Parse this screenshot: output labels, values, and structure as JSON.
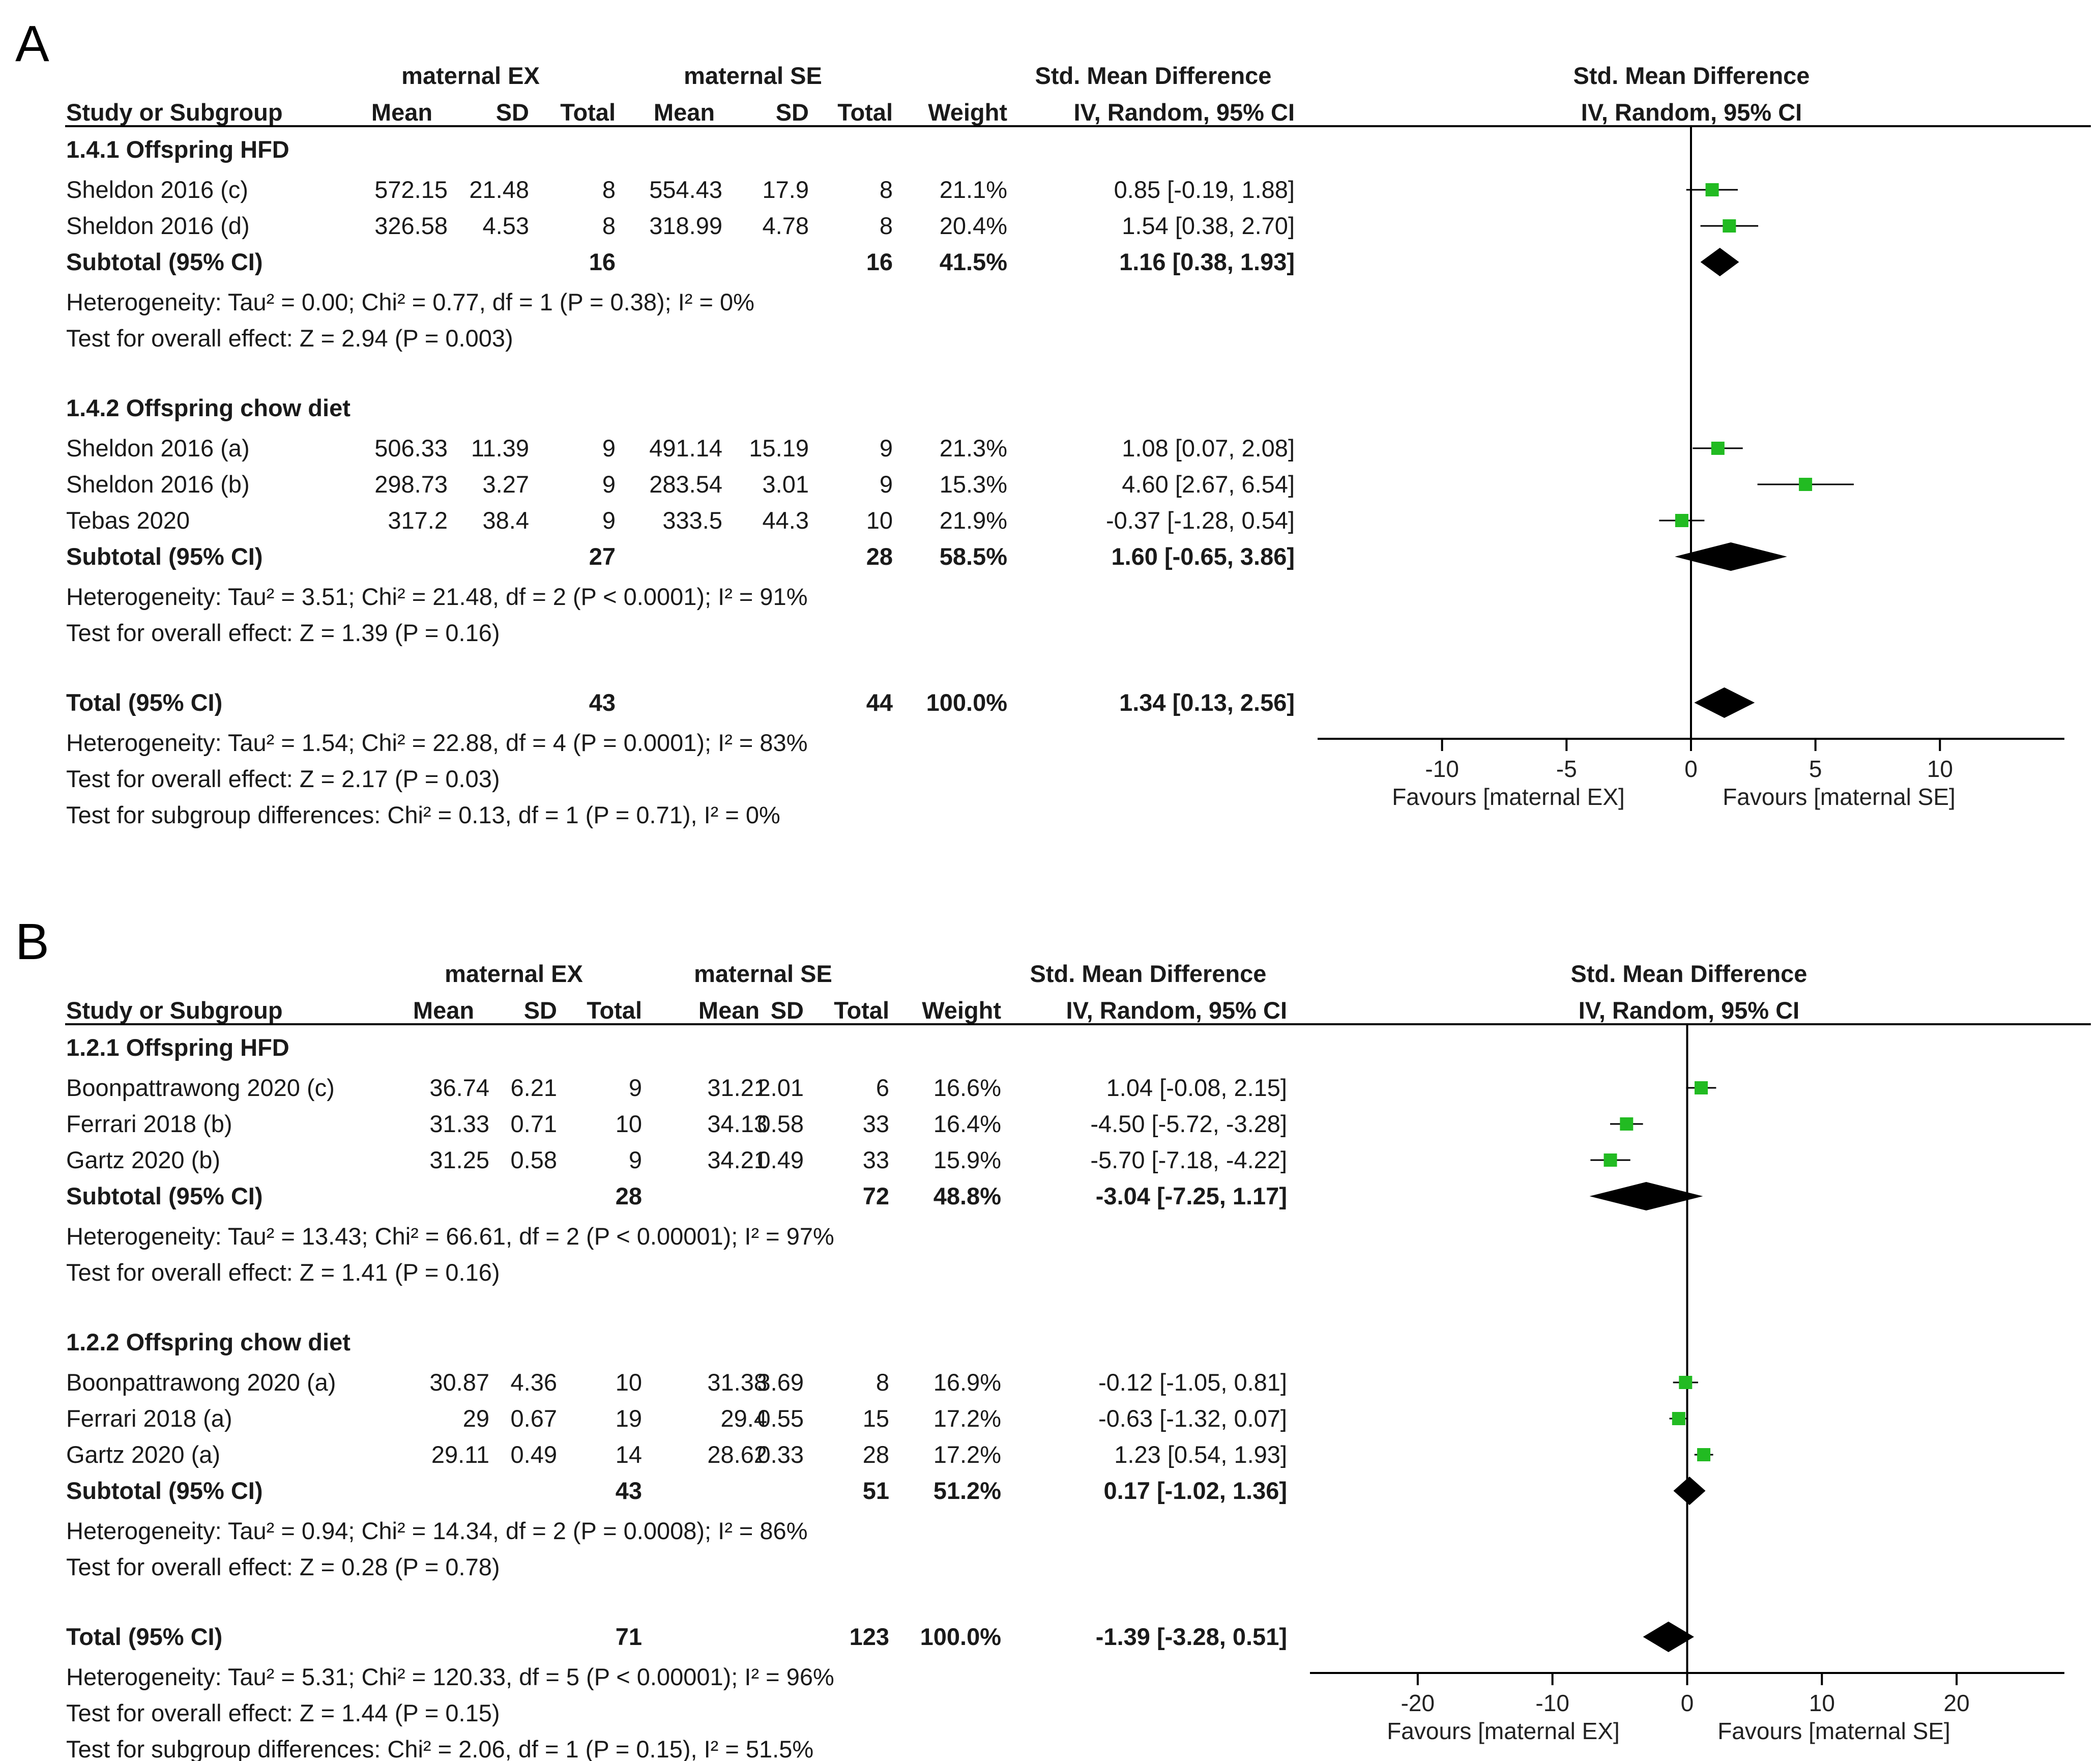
{
  "chart_data": [
    {
      "type": "forest",
      "panel_label": "A",
      "group_ex": "maternal EX",
      "group_se": "maternal SE",
      "header_effect": "Std. Mean Difference",
      "header_plot": "Std. Mean Difference",
      "col_study": "Study or Subgroup",
      "col_mean": "Mean",
      "col_sd": "SD",
      "col_total": "Total",
      "col_weight": "Weight",
      "col_ci": "IV, Random, 95% CI",
      "col_plot_ci": "IV, Random, 95% CI",
      "xlim": [
        -15,
        15
      ],
      "ticks": [
        -10,
        -5,
        0,
        5,
        10
      ],
      "tick_labels": [
        "-10",
        "-5",
        "0",
        "5",
        "10"
      ],
      "favours_left": "Favours [maternal EX]",
      "favours_right": "Favours [maternal SE]",
      "subgroups": [
        {
          "title": "1.4.1 Offspring HFD",
          "studies": [
            {
              "name": "Sheldon 2016 (c)",
              "ex_mean": "572.15",
              "ex_sd": "21.48",
              "ex_total": "8",
              "se_mean": "554.43",
              "se_sd": "17.9",
              "se_total": "8",
              "weight": "21.1%",
              "ci_text": "0.85 [-0.19, 1.88]",
              "est": 0.85,
              "lo": -0.19,
              "hi": 1.88
            },
            {
              "name": "Sheldon 2016 (d)",
              "ex_mean": "326.58",
              "ex_sd": "4.53",
              "ex_total": "8",
              "se_mean": "318.99",
              "se_sd": "4.78",
              "se_total": "8",
              "weight": "20.4%",
              "ci_text": "1.54 [0.38, 2.70]",
              "est": 1.54,
              "lo": 0.38,
              "hi": 2.7
            }
          ],
          "subtotal": {
            "label": "Subtotal (95% CI)",
            "ex_total": "16",
            "se_total": "16",
            "weight": "41.5%",
            "ci_text": "1.16 [0.38, 1.93]",
            "est": 1.16,
            "lo": 0.38,
            "hi": 1.93
          },
          "heterogeneity": "Heterogeneity: Tau² = 0.00; Chi² = 0.77, df = 1 (P = 0.38); I² = 0%",
          "overall": "Test for overall effect: Z = 2.94 (P = 0.003)"
        },
        {
          "title": "1.4.2 Offspring chow diet",
          "studies": [
            {
              "name": "Sheldon 2016 (a)",
              "ex_mean": "506.33",
              "ex_sd": "11.39",
              "ex_total": "9",
              "se_mean": "491.14",
              "se_sd": "15.19",
              "se_total": "9",
              "weight": "21.3%",
              "ci_text": "1.08 [0.07, 2.08]",
              "est": 1.08,
              "lo": 0.07,
              "hi": 2.08
            },
            {
              "name": "Sheldon 2016 (b)",
              "ex_mean": "298.73",
              "ex_sd": "3.27",
              "ex_total": "9",
              "se_mean": "283.54",
              "se_sd": "3.01",
              "se_total": "9",
              "weight": "15.3%",
              "ci_text": "4.60 [2.67, 6.54]",
              "est": 4.6,
              "lo": 2.67,
              "hi": 6.54
            },
            {
              "name": "Tebas 2020",
              "ex_mean": "317.2",
              "ex_sd": "38.4",
              "ex_total": "9",
              "se_mean": "333.5",
              "se_sd": "44.3",
              "se_total": "10",
              "weight": "21.9%",
              "ci_text": "-0.37 [-1.28, 0.54]",
              "est": -0.37,
              "lo": -1.28,
              "hi": 0.54
            }
          ],
          "subtotal": {
            "label": "Subtotal (95% CI)",
            "ex_total": "27",
            "se_total": "28",
            "weight": "58.5%",
            "ci_text": "1.60 [-0.65, 3.86]",
            "est": 1.6,
            "lo": -0.65,
            "hi": 3.86
          },
          "heterogeneity": "Heterogeneity: Tau² = 3.51; Chi² = 21.48, df = 2 (P < 0.0001); I² = 91%",
          "overall": "Test for overall effect: Z = 1.39 (P = 0.16)"
        }
      ],
      "total": {
        "label": "Total (95% CI)",
        "ex_total": "43",
        "se_total": "44",
        "weight": "100.0%",
        "ci_text": "1.34 [0.13, 2.56]",
        "est": 1.34,
        "lo": 0.13,
        "hi": 2.56
      },
      "total_heterogeneity": "Heterogeneity: Tau² = 1.54; Chi² = 22.88, df = 4 (P = 0.0001); I² = 83%",
      "total_overall": "Test for overall effect: Z = 2.17 (P = 0.03)",
      "subgroup_diff": "Test for subgroup differences: Chi² = 0.13, df = 1 (P = 0.71), I² = 0%"
    },
    {
      "type": "forest",
      "panel_label": "B",
      "group_ex": "maternal EX",
      "group_se": "maternal SE",
      "header_effect": "Std. Mean Difference",
      "header_plot": "Std. Mean Difference",
      "col_study": "Study or Subgroup",
      "col_mean": "Mean",
      "col_sd": "SD",
      "col_total": "Total",
      "col_weight": "Weight",
      "col_ci": "IV, Random, 95% CI",
      "col_plot_ci": "IV, Random, 95% CI",
      "xlim": [
        -28,
        28
      ],
      "ticks": [
        -20,
        -10,
        0,
        10,
        20
      ],
      "tick_labels": [
        "-20",
        "-10",
        "0",
        "10",
        "20"
      ],
      "favours_left": "Favours [maternal EX]",
      "favours_right": "Favours [maternal SE]",
      "subgroups": [
        {
          "title": "1.2.1 Offspring HFD",
          "studies": [
            {
              "name": "Boonpattrawong 2020 (c)",
              "ex_mean": "36.74",
              "ex_sd": "6.21",
              "ex_total": "9",
              "se_mean": "31.21",
              "se_sd": "2.01",
              "se_total": "6",
              "weight": "16.6%",
              "ci_text": "1.04 [-0.08, 2.15]",
              "est": 1.04,
              "lo": -0.08,
              "hi": 2.15
            },
            {
              "name": "Ferrari 2018 (b)",
              "ex_mean": "31.33",
              "ex_sd": "0.71",
              "ex_total": "10",
              "se_mean": "34.13",
              "se_sd": "0.58",
              "se_total": "33",
              "weight": "16.4%",
              "ci_text": "-4.50 [-5.72, -3.28]",
              "est": -4.5,
              "lo": -5.72,
              "hi": -3.28
            },
            {
              "name": "Gartz 2020 (b)",
              "ex_mean": "31.25",
              "ex_sd": "0.58",
              "ex_total": "9",
              "se_mean": "34.21",
              "se_sd": "0.49",
              "se_total": "33",
              "weight": "15.9%",
              "ci_text": "-5.70 [-7.18, -4.22]",
              "est": -5.7,
              "lo": -7.18,
              "hi": -4.22
            }
          ],
          "subtotal": {
            "label": "Subtotal (95% CI)",
            "ex_total": "28",
            "se_total": "72",
            "weight": "48.8%",
            "ci_text": "-3.04 [-7.25, 1.17]",
            "est": -3.04,
            "lo": -7.25,
            "hi": 1.17
          },
          "heterogeneity": "Heterogeneity: Tau² = 13.43; Chi² = 66.61, df = 2 (P < 0.00001); I² = 97%",
          "overall": "Test for overall effect: Z = 1.41 (P = 0.16)"
        },
        {
          "title": "1.2.2 Offspring chow diet",
          "studies": [
            {
              "name": "Boonpattrawong 2020 (a)",
              "ex_mean": "30.87",
              "ex_sd": "4.36",
              "ex_total": "10",
              "se_mean": "31.38",
              "se_sd": "3.69",
              "se_total": "8",
              "weight": "16.9%",
              "ci_text": "-0.12 [-1.05, 0.81]",
              "est": -0.12,
              "lo": -1.05,
              "hi": 0.81
            },
            {
              "name": "Ferrari 2018 (a)",
              "ex_mean": "29",
              "ex_sd": "0.67",
              "ex_total": "19",
              "se_mean": "29.4",
              "se_sd": "0.55",
              "se_total": "15",
              "weight": "17.2%",
              "ci_text": "-0.63 [-1.32, 0.07]",
              "est": -0.63,
              "lo": -1.32,
              "hi": 0.07
            },
            {
              "name": "Gartz 2020 (a)",
              "ex_mean": "29.11",
              "ex_sd": "0.49",
              "ex_total": "14",
              "se_mean": "28.62",
              "se_sd": "0.33",
              "se_total": "28",
              "weight": "17.2%",
              "ci_text": "1.23 [0.54, 1.93]",
              "est": 1.23,
              "lo": 0.54,
              "hi": 1.93
            }
          ],
          "subtotal": {
            "label": "Subtotal (95% CI)",
            "ex_total": "43",
            "se_total": "51",
            "weight": "51.2%",
            "ci_text": "0.17 [-1.02, 1.36]",
            "est": 0.17,
            "lo": -1.02,
            "hi": 1.36
          },
          "heterogeneity": "Heterogeneity: Tau² = 0.94; Chi² = 14.34, df = 2 (P = 0.0008); I² = 86%",
          "overall": "Test for overall effect: Z = 0.28 (P = 0.78)"
        }
      ],
      "total": {
        "label": "Total (95% CI)",
        "ex_total": "71",
        "se_total": "123",
        "weight": "100.0%",
        "ci_text": "-1.39 [-3.28, 0.51]",
        "est": -1.39,
        "lo": -3.28,
        "hi": 0.51
      },
      "total_heterogeneity": "Heterogeneity: Tau² = 5.31; Chi² = 120.33, df = 5 (P < 0.00001); I² = 96%",
      "total_overall": "Test for overall effect: Z = 1.44 (P = 0.15)",
      "subgroup_diff": "Test for subgroup differences: Chi² = 2.06, df = 1 (P = 0.15), I² = 51.5%"
    }
  ],
  "colors": {
    "study_marker": "#22bb22",
    "diamond": "#000000",
    "line": "#000000",
    "text": "#1a1a1a"
  }
}
